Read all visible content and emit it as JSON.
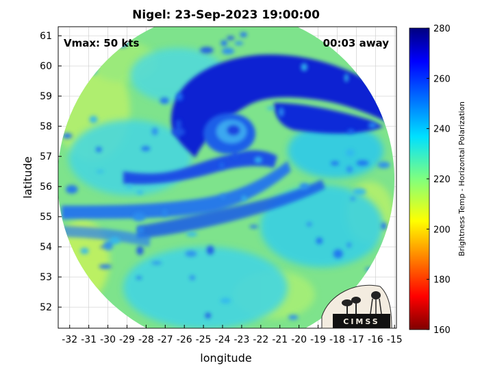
{
  "chart_data": {
    "type": "heatmap",
    "title": "Nigel: 23-Sep-2023 19:00:00",
    "xlabel": "longitude",
    "ylabel": "latitude",
    "xlim": [
      -32.6,
      -14.9
    ],
    "ylim": [
      51.3,
      61.3
    ],
    "x_ticks": [
      -32,
      -31,
      -30,
      -29,
      -28,
      -27,
      -26,
      -25,
      -24,
      -23,
      -22,
      -21,
      -20,
      -19,
      -18,
      -17,
      -16,
      -15
    ],
    "y_ticks": [
      52,
      53,
      54,
      55,
      56,
      57,
      58,
      59,
      60,
      61
    ],
    "grid": true,
    "storm_center": {
      "lon": -23.4,
      "lat": 57.8
    },
    "colorbar": {
      "label": "Brightness Temp - Horizontal Polarization",
      "range": [
        160,
        280
      ],
      "ticks": [
        160,
        180,
        200,
        220,
        240,
        260,
        280
      ],
      "colormap": "jet"
    },
    "annotations": {
      "vmax": "Vmax: 50 kts",
      "time_offset": "00:03 away"
    }
  },
  "logo": {
    "text": "CIMSS"
  },
  "colors": {
    "background_field": "#7ddf8a",
    "cold_band": "#0a1fd0"
  }
}
